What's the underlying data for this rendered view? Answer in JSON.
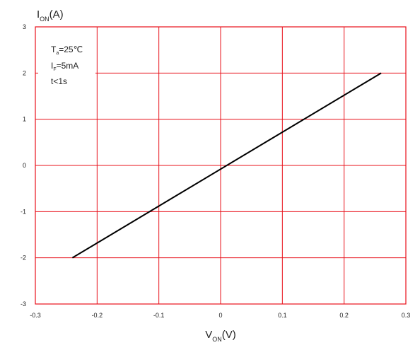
{
  "chart_data": {
    "type": "line",
    "title": "",
    "xlabel": {
      "main": "V",
      "sub": "ON",
      "unit": "(V)"
    },
    "ylabel": {
      "main": "I",
      "sub": "ON",
      "unit": "(A)"
    },
    "xlim": [
      -0.3,
      0.3
    ],
    "ylim": [
      -3,
      3
    ],
    "x_ticks": [
      -0.3,
      -0.2,
      -0.1,
      0,
      0.1,
      0.2,
      0.3
    ],
    "x_tick_labels": [
      "-0.3",
      "-0.2",
      "-0.1",
      "0",
      "0.1",
      "0.2",
      "0.3"
    ],
    "y_ticks": [
      3,
      2,
      1,
      0,
      -1,
      -2,
      -3
    ],
    "y_tick_labels": [
      "3",
      "2",
      "1",
      "0",
      "-1",
      "-2",
      "-3"
    ],
    "grid": true,
    "series": [
      {
        "x": [
          -0.24,
          0.26
        ],
        "y": [
          -2,
          2
        ]
      }
    ],
    "annotations": [
      {
        "main": "T",
        "sub": "a",
        "rest": "=25℃"
      },
      {
        "main": "I",
        "sub": "F",
        "rest": "=5mA"
      },
      {
        "main": "t<1s",
        "sub": "",
        "rest": ""
      }
    ],
    "colors": {
      "grid": "#e8101a",
      "line": "#000000",
      "text": "#222222"
    }
  }
}
